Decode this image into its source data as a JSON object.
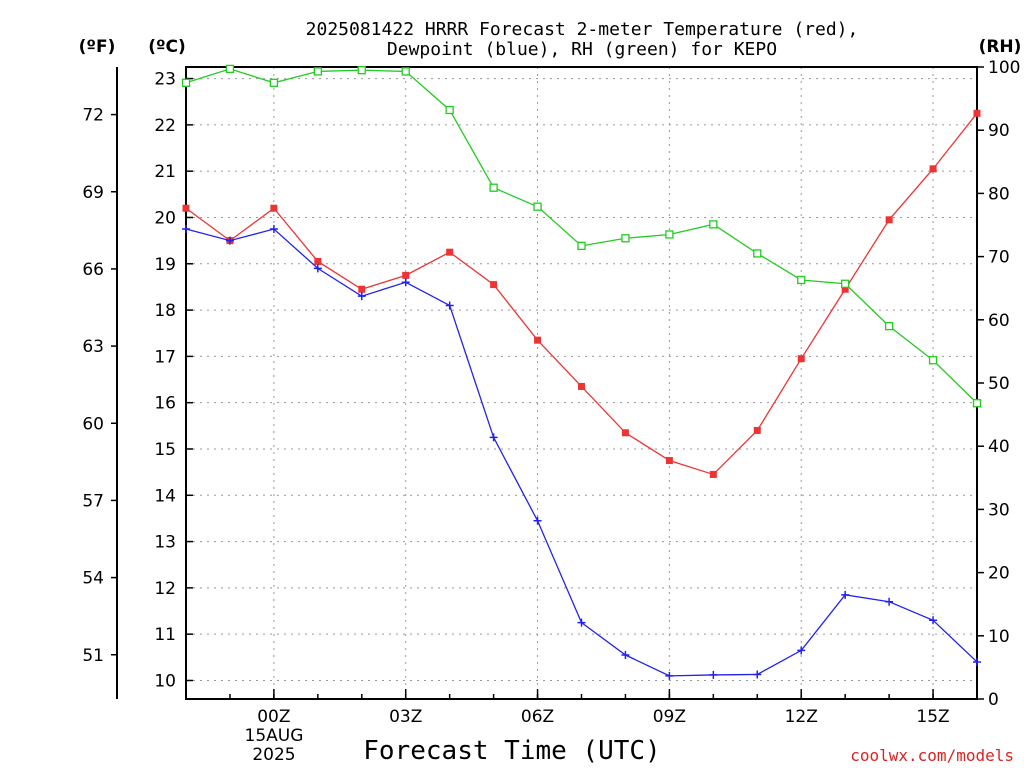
{
  "chart_data": {
    "type": "line",
    "title_line1": "2025081422 HRRR Forecast 2-meter Temperature (red),",
    "title_line2": "Dewpoint (blue), RH (green) for KEPO",
    "xlabel": "Forecast Time (UTC)",
    "left_outer_unit": "(ºF)",
    "left_inner_unit": "(ºC)",
    "right_unit": "(RH)",
    "date_label_line1": "15AUG",
    "date_label_line2": "2025",
    "credit": "coolwx.com/models",
    "x_categories": [
      "22Z",
      "23Z",
      "00Z",
      "01Z",
      "02Z",
      "03Z",
      "04Z",
      "05Z",
      "06Z",
      "07Z",
      "08Z",
      "09Z",
      "10Z",
      "11Z",
      "12Z",
      "13Z",
      "14Z",
      "15Z",
      "16Z"
    ],
    "x_tick_labels": [
      {
        "index": 2,
        "label": "00Z"
      },
      {
        "index": 5,
        "label": "03Z"
      },
      {
        "index": 8,
        "label": "06Z"
      },
      {
        "index": 11,
        "label": "09Z"
      },
      {
        "index": 14,
        "label": "12Z"
      },
      {
        "index": 17,
        "label": "15Z"
      }
    ],
    "celsius_ticks": [
      "10",
      "11",
      "12",
      "13",
      "14",
      "15",
      "16",
      "17",
      "18",
      "19",
      "20",
      "21",
      "22",
      "23"
    ],
    "fahrenheit_ticks": [
      "51",
      "54",
      "57",
      "60",
      "63",
      "66",
      "69",
      "72"
    ],
    "rh_ticks": [
      "0",
      "10",
      "20",
      "30",
      "40",
      "50",
      "60",
      "70",
      "80",
      "90",
      "100"
    ],
    "ylim_celsius": [
      9.6,
      23.25
    ],
    "ylim_rh": [
      0,
      100
    ],
    "grid": true,
    "series": [
      {
        "name": "Temperature",
        "color": "#ee3333",
        "marker": "filled-square",
        "axis": "celsius",
        "values": [
          20.2,
          19.5,
          20.2,
          19.05,
          18.45,
          18.75,
          19.25,
          18.55,
          17.35,
          16.35,
          15.35,
          14.75,
          14.45,
          15.4,
          16.95,
          18.45,
          19.95,
          21.05,
          22.25
        ]
      },
      {
        "name": "Dewpoint",
        "color": "#2222ee",
        "marker": "plus",
        "axis": "celsius",
        "values": [
          19.75,
          19.5,
          19.75,
          18.9,
          18.3,
          18.6,
          18.1,
          15.25,
          13.45,
          11.25,
          10.55,
          10.1,
          10.12,
          10.13,
          10.65,
          11.85,
          11.7,
          11.3,
          10.4
        ]
      },
      {
        "name": "RH",
        "color": "#22cc22",
        "marker": "open-square",
        "axis": "rh",
        "values": [
          97.5,
          99.7,
          97.5,
          99.3,
          99.5,
          99.3,
          93.2,
          80.9,
          77.9,
          71.7,
          72.9,
          73.5,
          75.1,
          70.5,
          66.3,
          65.7,
          59.0,
          53.6,
          46.8
        ]
      }
    ]
  }
}
